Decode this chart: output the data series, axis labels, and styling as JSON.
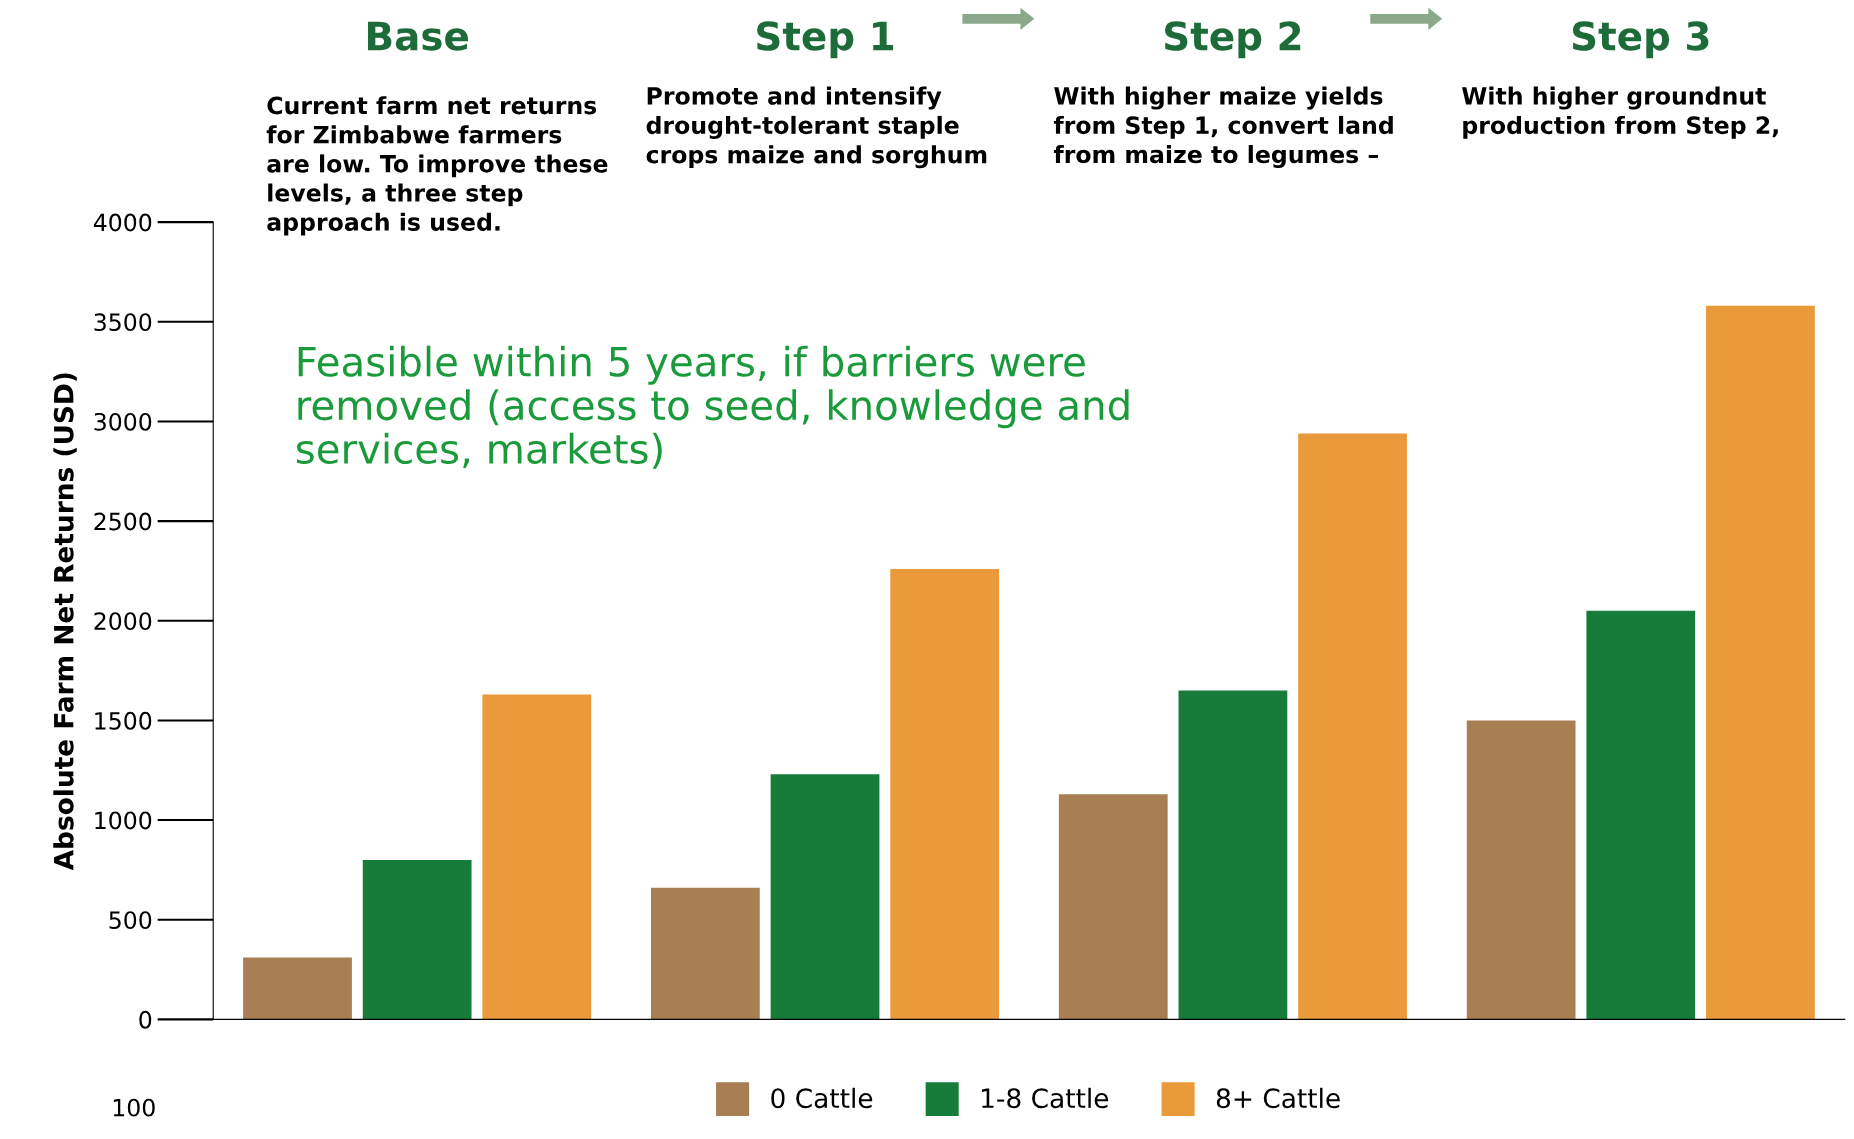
{
  "chart_data": {
    "type": "bar",
    "ylabel": "Absolute Farm Net Returns (USD)",
    "categories": [
      "Base",
      "Step 1",
      "Step 2",
      "Step 3"
    ],
    "series": [
      {
        "name": "0 Cattle",
        "color": "#a87f52",
        "values": [
          310,
          660,
          1130,
          1500
        ]
      },
      {
        "name": "1-8 Cattle",
        "color": "#177c3a",
        "values": [
          800,
          1230,
          1650,
          2050
        ]
      },
      {
        "name": "8+ Cattle",
        "color": "#ea9a3a",
        "values": [
          1630,
          2260,
          2940,
          3580
        ]
      }
    ],
    "ylim": [
      0,
      4000
    ],
    "yticks": [
      0,
      500,
      1000,
      1500,
      2000,
      2500,
      3000,
      3500,
      4000
    ],
    "grid": false,
    "legend": "bottom",
    "annotations": [
      "Current farm net returns\nfor Zimbabwe farmers\nare low. To improve these\nlevels, a three step\napproach is used.",
      "Promote and intensify\ndrought-tolerant staple\ncrops maize and sorghum",
      "With higher maize yields\nfrom Step 1, convert land\nfrom maize to legumes –",
      "With higher groundnut\nproduction from Step 2,",
      "Feasible within 5 years, if barriers were\nremoved (access to seed, knowledge and\nservices, markets)",
      "100"
    ]
  }
}
